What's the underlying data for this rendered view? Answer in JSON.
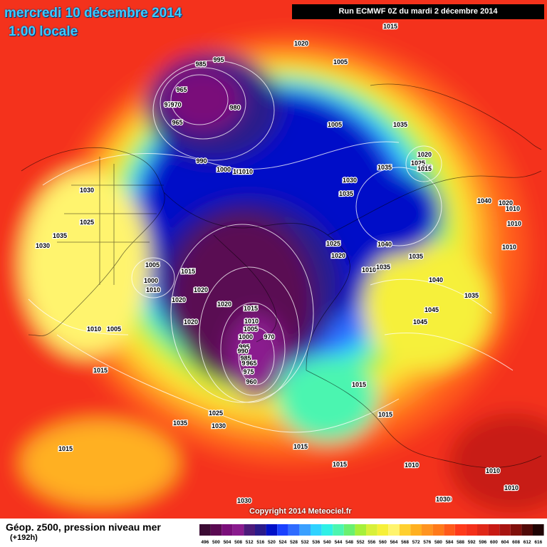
{
  "header": {
    "date": "mercredi 10 décembre 2014",
    "time": "1:00 locale",
    "run": "Run ECMWF 0Z du mardi 2 décembre 2014"
  },
  "footer": {
    "title": "Géop. z500, pression niveau mer",
    "subtitle": "(+192h)",
    "copyright": "Copyright 2014 Meteociel.fr"
  },
  "scale": {
    "values": [
      "496",
      "500",
      "504",
      "508",
      "512",
      "516",
      "520",
      "524",
      "528",
      "532",
      "536",
      "540",
      "544",
      "548",
      "552",
      "556",
      "560",
      "564",
      "568",
      "572",
      "576",
      "580",
      "584",
      "588",
      "592",
      "596",
      "600",
      "604",
      "608",
      "612",
      "616"
    ],
    "colors": [
      "#3b0b34",
      "#5a0a52",
      "#7a0e7a",
      "#8a1b8e",
      "#4c1a7a",
      "#2a1a8a",
      "#0010c8",
      "#1a40ff",
      "#2f6bff",
      "#3aa0ff",
      "#2fd2ff",
      "#2ff0e6",
      "#4cf5b0",
      "#6af070",
      "#a6f03a",
      "#d8f03a",
      "#f6f03a",
      "#fff46e",
      "#ffd030",
      "#ffb020",
      "#ff9420",
      "#ff7a1a",
      "#ff5a1a",
      "#ff3a1a",
      "#f4301a",
      "#e02818",
      "#c81a14",
      "#a81410",
      "#80100c",
      "#500a08",
      "#200404"
    ]
  },
  "isobars": [
    {
      "label": "1015",
      "pos": "arctic-edge-ne"
    },
    {
      "label": "1020",
      "pos": "north-pacific"
    },
    {
      "label": "1005",
      "pos": "siberia"
    },
    {
      "label": "995",
      "pos": "aleutian"
    },
    {
      "label": "985",
      "pos": "aleutian"
    },
    {
      "label": "965",
      "pos": "aleutian"
    },
    {
      "label": "975",
      "pos": "aleutian"
    },
    {
      "label": "970",
      "pos": "aleutian"
    },
    {
      "label": "965",
      "pos": "aleutian"
    },
    {
      "label": "980",
      "pos": "aleutian"
    },
    {
      "label": "990",
      "pos": "bering"
    },
    {
      "label": "1000",
      "pos": "bering"
    },
    {
      "label": "1010",
      "pos": "bering"
    },
    {
      "label": "1010",
      "pos": "bering"
    },
    {
      "label": "1005",
      "pos": "kara"
    },
    {
      "label": "1035",
      "pos": "asia"
    },
    {
      "label": "1020",
      "pos": "mongolia"
    },
    {
      "label": "1025",
      "pos": "mongolia"
    },
    {
      "label": "1020",
      "pos": "mongolia"
    },
    {
      "label": "1015",
      "pos": "mongolia"
    },
    {
      "label": "1030",
      "pos": "arctic"
    },
    {
      "label": "1035",
      "pos": "arctic"
    },
    {
      "label": "1035",
      "pos": "siberia"
    },
    {
      "label": "1040",
      "pos": "asia"
    },
    {
      "label": "1040",
      "pos": "china"
    },
    {
      "label": "1020",
      "pos": "china"
    },
    {
      "label": "1010",
      "pos": "china"
    },
    {
      "label": "1010",
      "pos": "china"
    },
    {
      "label": "1010",
      "pos": "china"
    },
    {
      "label": "1030",
      "pos": "canada"
    },
    {
      "label": "1025",
      "pos": "canada"
    },
    {
      "label": "1035",
      "pos": "usa"
    },
    {
      "label": "1030",
      "pos": "usa"
    },
    {
      "label": "1005",
      "pos": "hudson"
    },
    {
      "label": "1000",
      "pos": "hudson"
    },
    {
      "label": "1010",
      "pos": "hudson"
    },
    {
      "label": "1015",
      "pos": "greenland"
    },
    {
      "label": "1020",
      "pos": "greenland"
    },
    {
      "label": "1020",
      "pos": "labrador"
    },
    {
      "label": "1020",
      "pos": "atlantic"
    },
    {
      "label": "1020",
      "pos": "atlantic"
    },
    {
      "label": "1015",
      "pos": "atlantic"
    },
    {
      "label": "1010",
      "pos": "atlantic"
    },
    {
      "label": "1005",
      "pos": "atlantic"
    },
    {
      "label": "1000",
      "pos": "atlantic"
    },
    {
      "label": "995",
      "pos": "atlantic"
    },
    {
      "label": "990",
      "pos": "atlantic"
    },
    {
      "label": "985",
      "pos": "atlantic"
    },
    {
      "label": "980",
      "pos": "atlantic"
    },
    {
      "label": "975",
      "pos": "atlantic"
    },
    {
      "label": "970",
      "pos": "atlantic"
    },
    {
      "label": "965",
      "pos": "atlantic"
    },
    {
      "label": "960",
      "pos": "atlantic"
    },
    {
      "label": "1025",
      "pos": "scandinavia"
    },
    {
      "label": "1020",
      "pos": "scandinavia"
    },
    {
      "label": "1010",
      "pos": "russia"
    },
    {
      "label": "1035",
      "pos": "russia"
    },
    {
      "label": "1040",
      "pos": "kazakhstan"
    },
    {
      "label": "1035",
      "pos": "kazakhstan"
    },
    {
      "label": "1045",
      "pos": "kazakhstan"
    },
    {
      "label": "1045",
      "pos": "kazakhstan"
    },
    {
      "label": "1035",
      "pos": "china"
    },
    {
      "label": "1010",
      "pos": "west"
    },
    {
      "label": "1005",
      "pos": "west"
    },
    {
      "label": "1015",
      "pos": "west"
    },
    {
      "label": "1025",
      "pos": "azores"
    },
    {
      "label": "1030",
      "pos": "azores"
    },
    {
      "label": "1035",
      "pos": "azores"
    },
    {
      "label": "1015",
      "pos": "atlantic-south"
    },
    {
      "label": "1015",
      "pos": "europe"
    },
    {
      "label": "1015",
      "pos": "europe"
    },
    {
      "label": "1015",
      "pos": "middle-east"
    },
    {
      "label": "1015",
      "pos": "middle-east"
    },
    {
      "label": "1010",
      "pos": "africa"
    },
    {
      "label": "1015",
      "pos": "india"
    },
    {
      "label": "1020",
      "pos": "india"
    },
    {
      "label": "1010",
      "pos": "india"
    },
    {
      "label": "1010",
      "pos": "india"
    },
    {
      "label": "1030",
      "pos": "south"
    },
    {
      "label": "1030",
      "pos": "south"
    }
  ]
}
